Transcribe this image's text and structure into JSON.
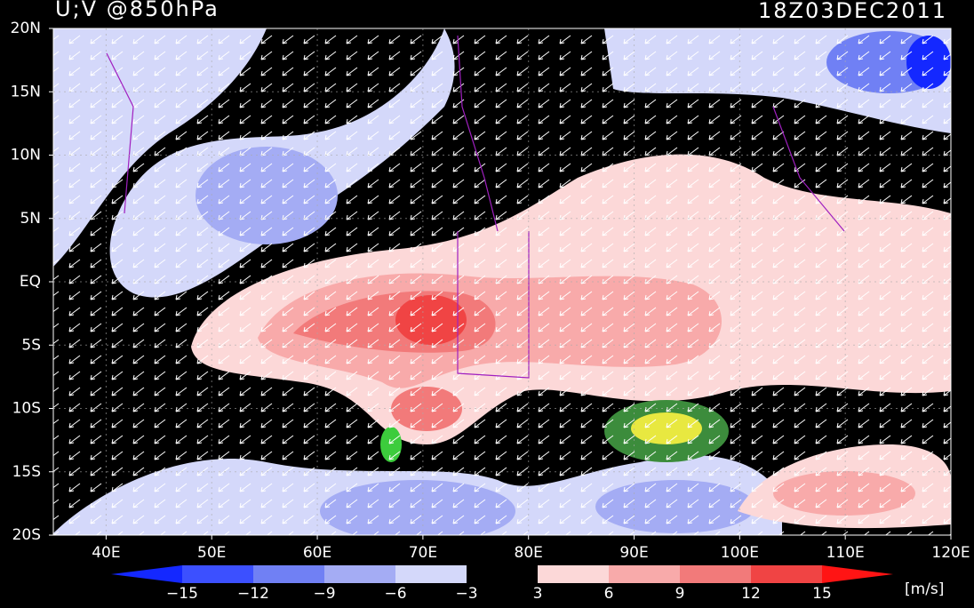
{
  "header": {
    "title": "U;V @850hPa",
    "time": "18Z03DEC2011"
  },
  "latitude_labels": [
    "20N",
    "15N",
    "10N",
    "5N",
    "EQ",
    "5S",
    "10S",
    "15S",
    "20S"
  ],
  "longitude_labels": [
    "40E",
    "50E",
    "60E",
    "70E",
    "80E",
    "90E",
    "100E",
    "110E",
    "120E"
  ],
  "colorbar": {
    "labels": [
      "−15",
      "−12",
      "−9",
      "−6",
      "−3",
      "3",
      "6",
      "9",
      "12",
      "15"
    ],
    "colors": [
      "#1428ff",
      "#3c50ff",
      "#7080f4",
      "#a4acf4",
      "#d4d8fa",
      "#000000",
      "#fcd8d8",
      "#f8aaaa",
      "#f27a7a",
      "#f04444",
      "#ff1414"
    ],
    "unit": "[m/s]"
  }
}
